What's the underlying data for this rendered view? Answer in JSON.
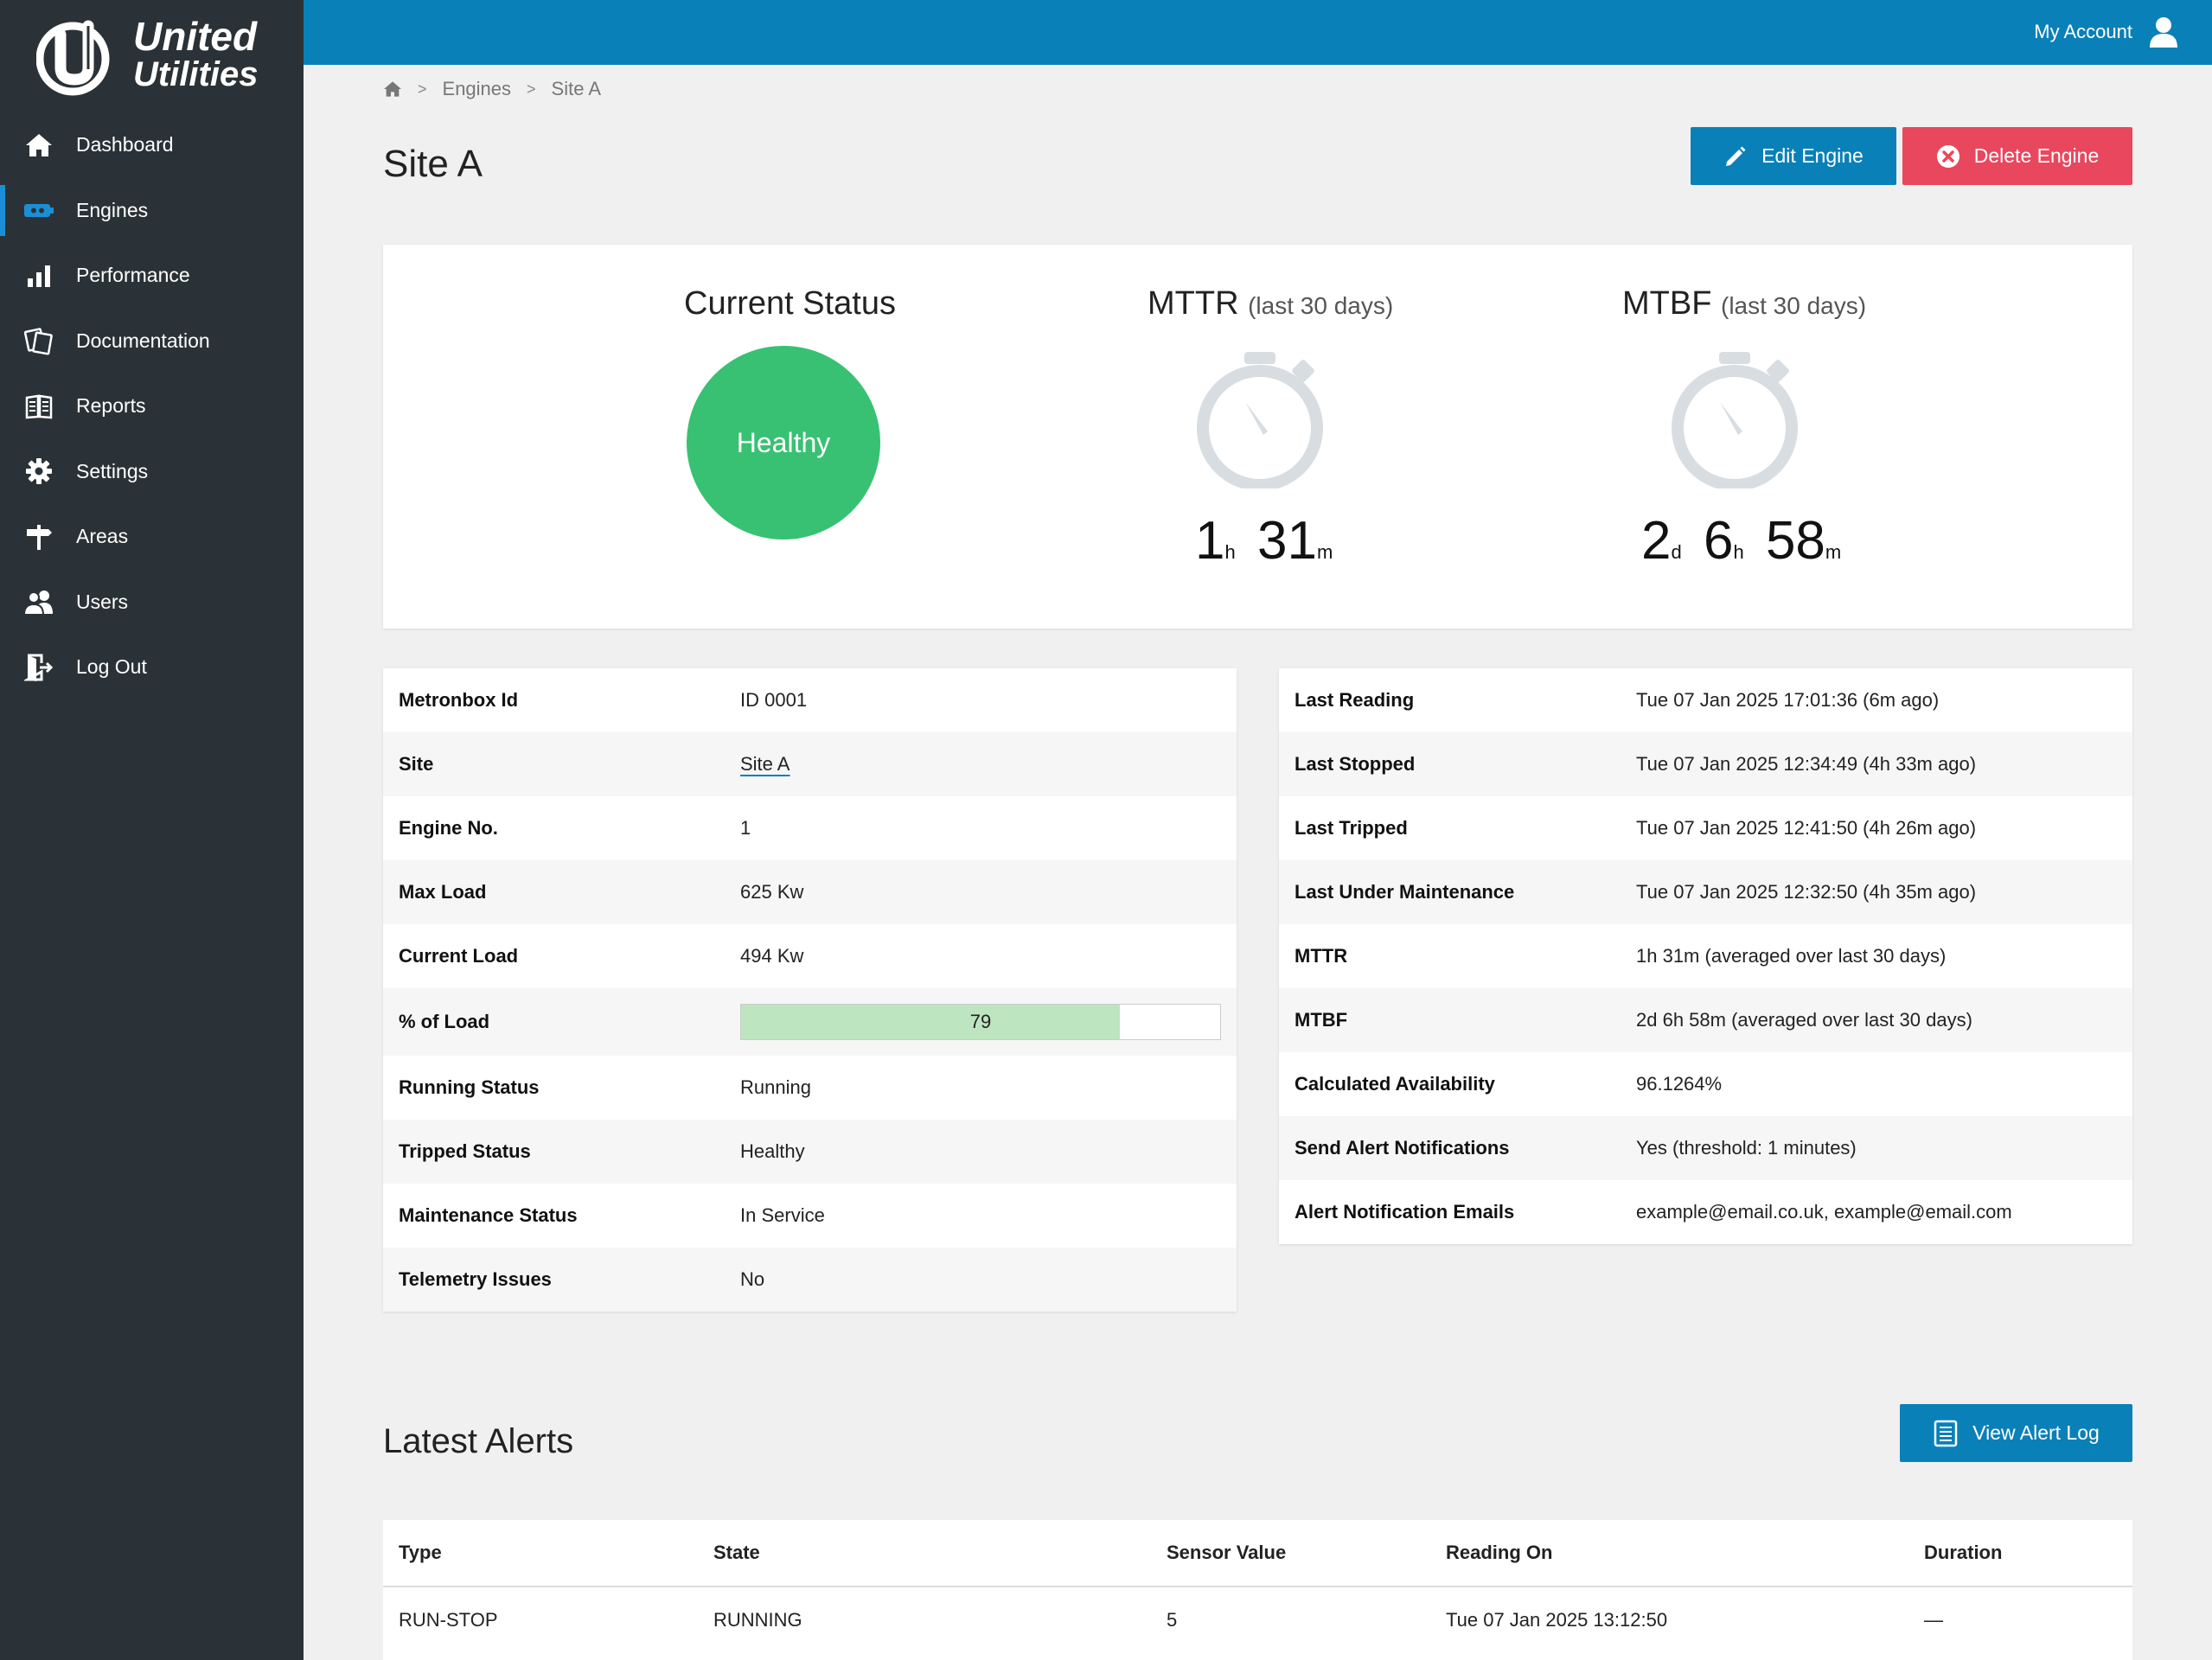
{
  "brand": {
    "line1": "United",
    "line2": "Utilities"
  },
  "sidebar": {
    "items": [
      {
        "label": "Dashboard",
        "icon": "home-icon"
      },
      {
        "label": "Engines",
        "icon": "engine-icon",
        "active": true
      },
      {
        "label": "Performance",
        "icon": "bar-chart-icon"
      },
      {
        "label": "Documentation",
        "icon": "documents-icon"
      },
      {
        "label": "Reports",
        "icon": "reports-icon"
      },
      {
        "label": "Settings",
        "icon": "gear-icon"
      },
      {
        "label": "Areas",
        "icon": "signpost-icon"
      },
      {
        "label": "Users",
        "icon": "users-icon"
      },
      {
        "label": "Log Out",
        "icon": "logout-icon"
      }
    ]
  },
  "topbar": {
    "account_label": "My Account"
  },
  "breadcrumb": {
    "sep": ">",
    "items": [
      "Engines",
      "Site A"
    ]
  },
  "page": {
    "title": "Site A"
  },
  "actions": {
    "edit": "Edit Engine",
    "delete": "Delete Engine",
    "view_log": "View Alert Log"
  },
  "stats": {
    "status_title": "Current Status",
    "status_value": "Healthy",
    "mttr_title": "MTTR",
    "mttr_sub": "(last 30 days)",
    "mttr": {
      "h": "1",
      "h_unit": "h",
      "m": "31",
      "m_unit": "m"
    },
    "mtbf_title": "MTBF",
    "mtbf_sub": "(last 30 days)",
    "mtbf": {
      "d": "2",
      "d_unit": "d",
      "h": "6",
      "h_unit": "h",
      "m": "58",
      "m_unit": "m"
    }
  },
  "details_left": [
    {
      "k": "Metronbox Id",
      "v": "ID 0001"
    },
    {
      "k": "Site",
      "v": "Site A"
    },
    {
      "k": "Engine No.",
      "v": "1"
    },
    {
      "k": "Max Load",
      "v": "625 Kw"
    },
    {
      "k": "Current Load",
      "v": "494 Kw"
    },
    {
      "k": "% of Load",
      "v": "79",
      "percent": 79
    },
    {
      "k": "Running Status",
      "v": "Running"
    },
    {
      "k": "Tripped Status",
      "v": "Healthy"
    },
    {
      "k": "Maintenance Status",
      "v": "In Service"
    },
    {
      "k": "Telemetry Issues",
      "v": "No"
    }
  ],
  "details_right": [
    {
      "k": "Last Reading",
      "v": "Tue 07 Jan 2025 17:01:36 (6m ago)"
    },
    {
      "k": "Last Stopped",
      "v": "Tue 07 Jan 2025 12:34:49 (4h 33m ago)"
    },
    {
      "k": "Last Tripped",
      "v": "Tue 07 Jan 2025 12:41:50 (4h 26m ago)"
    },
    {
      "k": "Last Under Maintenance",
      "v": "Tue 07 Jan 2025 12:32:50 (4h 35m ago)"
    },
    {
      "k": "MTTR",
      "v": "1h 31m (averaged over last 30 days)"
    },
    {
      "k": "MTBF",
      "v": "2d 6h 58m (averaged over last 30 days)"
    },
    {
      "k": "Calculated Availability",
      "v": "96.1264%"
    },
    {
      "k": "Send Alert Notifications",
      "v": "Yes (threshold: 1 minutes)"
    },
    {
      "k": "Alert Notification Emails",
      "v": "example@email.co.uk, example@email.com"
    }
  ],
  "alerts": {
    "title": "Latest Alerts",
    "columns": [
      "Type",
      "State",
      "Sensor Value",
      "Reading On",
      "Duration"
    ],
    "rows": [
      [
        "RUN-STOP",
        "RUNNING",
        "5",
        "Tue 07 Jan 2025 13:12:50",
        "—"
      ]
    ]
  },
  "colors": {
    "sidebar_bg": "#2b3237",
    "topbar_bg": "#0a80b8",
    "healthy": "#38c172",
    "danger": "#e8475d",
    "bar_fill": "#bde5bf"
  }
}
